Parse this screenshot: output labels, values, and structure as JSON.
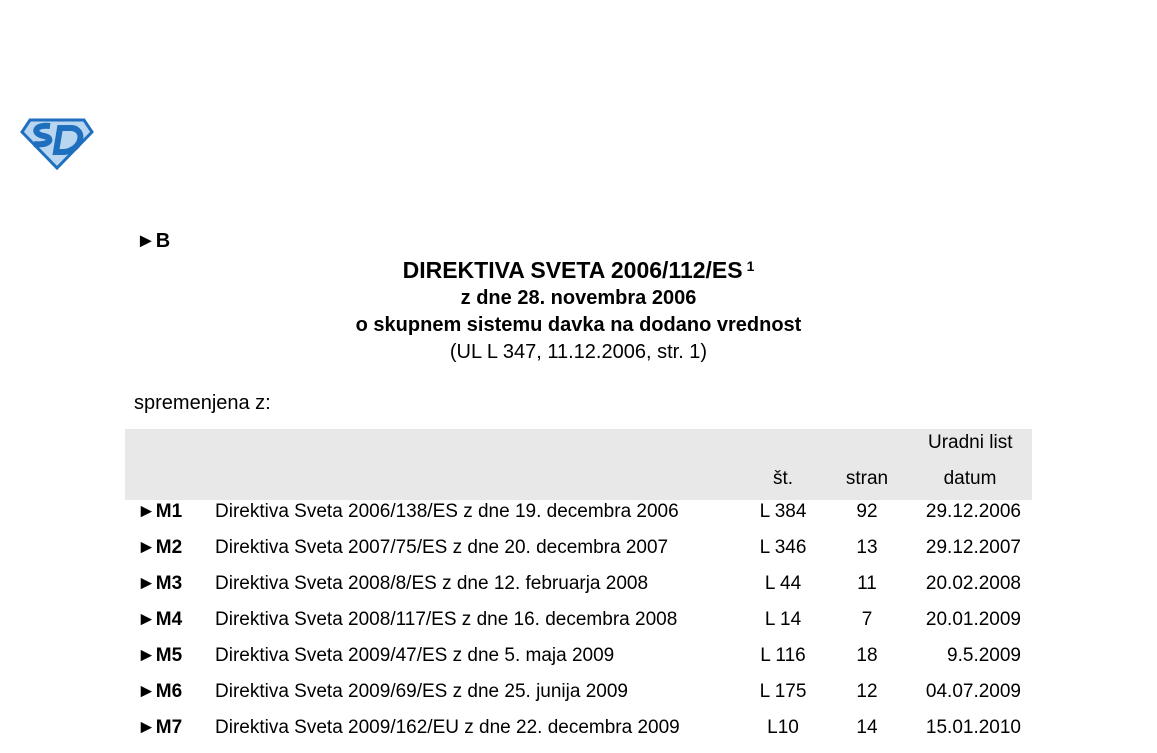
{
  "logo": {
    "text": "SD",
    "colors": {
      "primary": "#1f6fbf",
      "light": "#b8d6f0"
    }
  },
  "marker_b": "►B",
  "title": "DIREKTIVA SVETA 2006/112/ES",
  "title_footnote": "1",
  "subtitle_date": "z dne 28. novembra 2006",
  "subtitle_subject": "o skupnem sistemu davka na dodano vrednost",
  "reference": "(UL L 347, 11.12.2006, str. 1)",
  "amended_by": "spremenjena z:",
  "table": {
    "header_group": "Uradni list",
    "columns": [
      "št.",
      "stran",
      "datum"
    ],
    "rows": [
      {
        "marker": "►M1",
        "description": "Direktiva Sveta 2006/138/ES z dne 19. decembra 2006",
        "no": "L 384",
        "page": "92",
        "date": "29.12.2006"
      },
      {
        "marker": "►M2",
        "description": "Direktiva Sveta 2007/75/ES z dne 20. decembra 2007",
        "no": "L 346",
        "page": "13",
        "date": "29.12.2007"
      },
      {
        "marker": "►M3",
        "description": "Direktiva Sveta 2008/8/ES z dne 12. februarja 2008",
        "no": "L 44",
        "page": "11",
        "date": "20.02.2008"
      },
      {
        "marker": "►M4",
        "description": "Direktiva Sveta 2008/117/ES z dne 16. decembra 2008",
        "no": "L 14",
        "page": "7",
        "date": "20.01.2009"
      },
      {
        "marker": "►M5",
        "description": "Direktiva Sveta 2009/47/ES z dne 5. maja 2009",
        "no": "L 116",
        "page": "18",
        "date": "9.5.2009"
      },
      {
        "marker": "►M6",
        "description": "Direktiva Sveta 2009/69/ES z dne 25. junija 2009",
        "no": "L 175",
        "page": "12",
        "date": "04.07.2009"
      },
      {
        "marker": "►M7",
        "description": "Direktiva Sveta 2009/162/EU z dne 22. decembra 2009",
        "no": "L10",
        "page": "14",
        "date": "15.01.2010"
      }
    ]
  }
}
